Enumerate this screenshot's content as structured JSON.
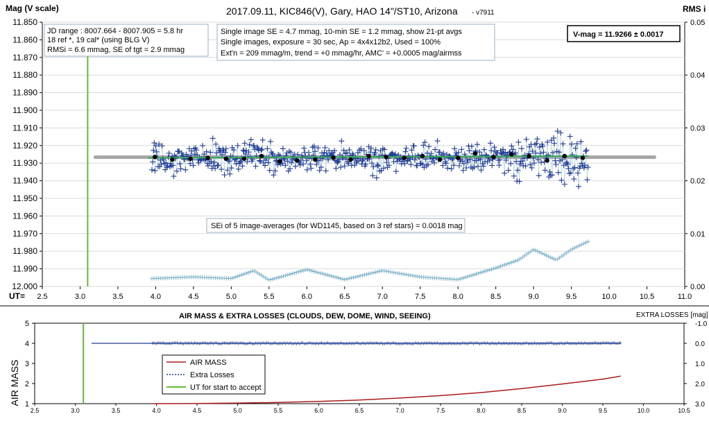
{
  "chart_data": [
    {
      "type": "scatter",
      "title": "2017.09.11,  KIC846(V),  Gary,  HAO 14\"/ST10, Arizona",
      "version": "- v7911",
      "ylabel_left": "Mag (V scale)",
      "ylabel_right": "RMS i",
      "xlabel": "UT=",
      "xlim": [
        2.5,
        11.0
      ],
      "ylim_left": [
        11.85,
        12.0
      ],
      "ylim_right": [
        0.0,
        0.05
      ],
      "x_ticks": [
        "2.5",
        "3.0",
        "3.5",
        "4.0",
        "4.5",
        "5.0",
        "5.5",
        "6.0",
        "6.5",
        "7.0",
        "7.5",
        "8.0",
        "8.5",
        "9.0",
        "9.5",
        "10.0",
        "10.5",
        "11.0"
      ],
      "y_ticks_left": [
        "11.850",
        "11.860",
        "11.870",
        "11.880",
        "11.890",
        "11.900",
        "11.910",
        "11.920",
        "11.930",
        "11.940",
        "11.950",
        "11.960",
        "11.970",
        "11.980",
        "11.990",
        "12.000"
      ],
      "y_ticks_right": [
        "0.05",
        "0.04",
        "0.03",
        "0.02",
        "0.01",
        "0.00"
      ],
      "annotations": {
        "box1": [
          "JD range : 8007.664 - 8007.905 =  5.8  hr",
          "18 ref *, 19 cal* (using BLG V)",
          "RMSi = 6.6 mmag, SE of tgt = 2.9 mmag"
        ],
        "box2": [
          "Single image SE = 4.7 mmag, 10-min SE = 1.2 mmag, show 21-pt avgs",
          "Single images, exposure = 30 sec, Ap = 4x4x12b2, Used = 100%",
          "Ext'n = 209 mmag/m, trend = +0 mmag/hr, AMC' = +0.0005 mag/airmss"
        ],
        "box3": "V-mag = 11.9266 ± 0.0017",
        "sei": "SEi of 5 image-averages (for WD1145, based on 3 ref stars) = 0.0018 mag"
      },
      "series": [
        {
          "kind": "averages",
          "x": [
            3.99,
            4.22,
            4.46,
            4.69,
            4.93,
            5.17,
            5.4,
            5.64,
            5.87,
            6.11,
            6.35,
            6.58,
            6.82,
            7.05,
            7.29,
            7.53,
            7.76,
            8.0,
            8.23,
            8.47,
            8.71,
            8.94,
            9.18,
            9.41,
            9.65
          ],
          "y": [
            11.9265,
            11.928,
            11.9275,
            11.927,
            11.9275,
            11.9275,
            11.926,
            11.929,
            11.9285,
            11.928,
            11.927,
            11.928,
            11.926,
            11.9265,
            11.927,
            11.926,
            11.928,
            11.927,
            11.9245,
            11.9265,
            11.925,
            11.926,
            11.9285,
            11.926,
            11.927
          ]
        },
        {
          "kind": "model_fit",
          "x": [
            3.9,
            9.72
          ],
          "y": [
            11.927,
            11.926
          ]
        },
        {
          "kind": "mean_level",
          "x": [
            3.2,
            10.6
          ],
          "y": [
            11.9266,
            11.9266
          ]
        },
        {
          "kind": "rms",
          "x": [
            3.95,
            4.5,
            5.0,
            5.3,
            5.5,
            6.0,
            6.5,
            7.0,
            7.5,
            8.0,
            8.5,
            8.8,
            9.0,
            9.3,
            9.5,
            9.72
          ],
          "y": [
            0.0015,
            0.0018,
            0.0015,
            0.003,
            0.0012,
            0.0032,
            0.0013,
            0.003,
            0.0018,
            0.0013,
            0.0035,
            0.005,
            0.007,
            0.005,
            0.007,
            0.0085
          ]
        }
      ],
      "ut_accept": 3.1,
      "scatter_range": [
        3.95,
        9.72
      ],
      "scatter_center": 11.927,
      "colors": {
        "points": "#1f3c96",
        "averages": "#000000",
        "mean_level": "#a6a6a6",
        "model": "#33aa55",
        "rms": "#7fb4cc",
        "accept": "#66bb33"
      }
    },
    {
      "type": "line",
      "title": "AIR MASS & EXTRA LOSSES (CLOUDS, DEW, DOME, WIND, SEEING)",
      "ylabel_left": "AIR MASS",
      "ylabel_right": "EXTRA LOSSES [mag]",
      "xlim": [
        2.5,
        10.5
      ],
      "ylim_left": [
        1,
        5
      ],
      "ylim_right": [
        3.0,
        -1.0
      ],
      "x_ticks": [
        "2.5",
        "3.0",
        "3.5",
        "4.0",
        "4.5",
        "5.0",
        "5.5",
        "6.0",
        "6.5",
        "7.0",
        "7.5",
        "8.0",
        "8.5",
        "9.0",
        "9.5",
        "10.0",
        "10.5"
      ],
      "y_ticks_left": [
        "1",
        "2",
        "3",
        "4",
        "5"
      ],
      "y_ticks_right": [
        "-1.0",
        "0.0",
        "1.0",
        "2.0",
        "3.0"
      ],
      "legend": [
        "AIR MASS",
        "Extra Losses",
        "UT for start to accept"
      ],
      "legend_position": "center-left",
      "series": [
        {
          "name": "AIR MASS",
          "x": [
            3.95,
            4.5,
            5.0,
            5.5,
            6.0,
            6.5,
            7.0,
            7.5,
            8.0,
            8.5,
            9.0,
            9.5,
            9.72
          ],
          "y": [
            1.0,
            1.01,
            1.03,
            1.06,
            1.11,
            1.18,
            1.28,
            1.4,
            1.55,
            1.75,
            1.98,
            2.22,
            2.37
          ]
        },
        {
          "name": "Extra Losses",
          "x": [
            3.2,
            9.72
          ],
          "y": [
            0.0,
            0.0
          ]
        }
      ],
      "ut_accept": 3.1,
      "colors": {
        "airmass": "#aa1a1a",
        "losses": "#1f3c96",
        "accept": "#66bb33"
      }
    }
  ]
}
